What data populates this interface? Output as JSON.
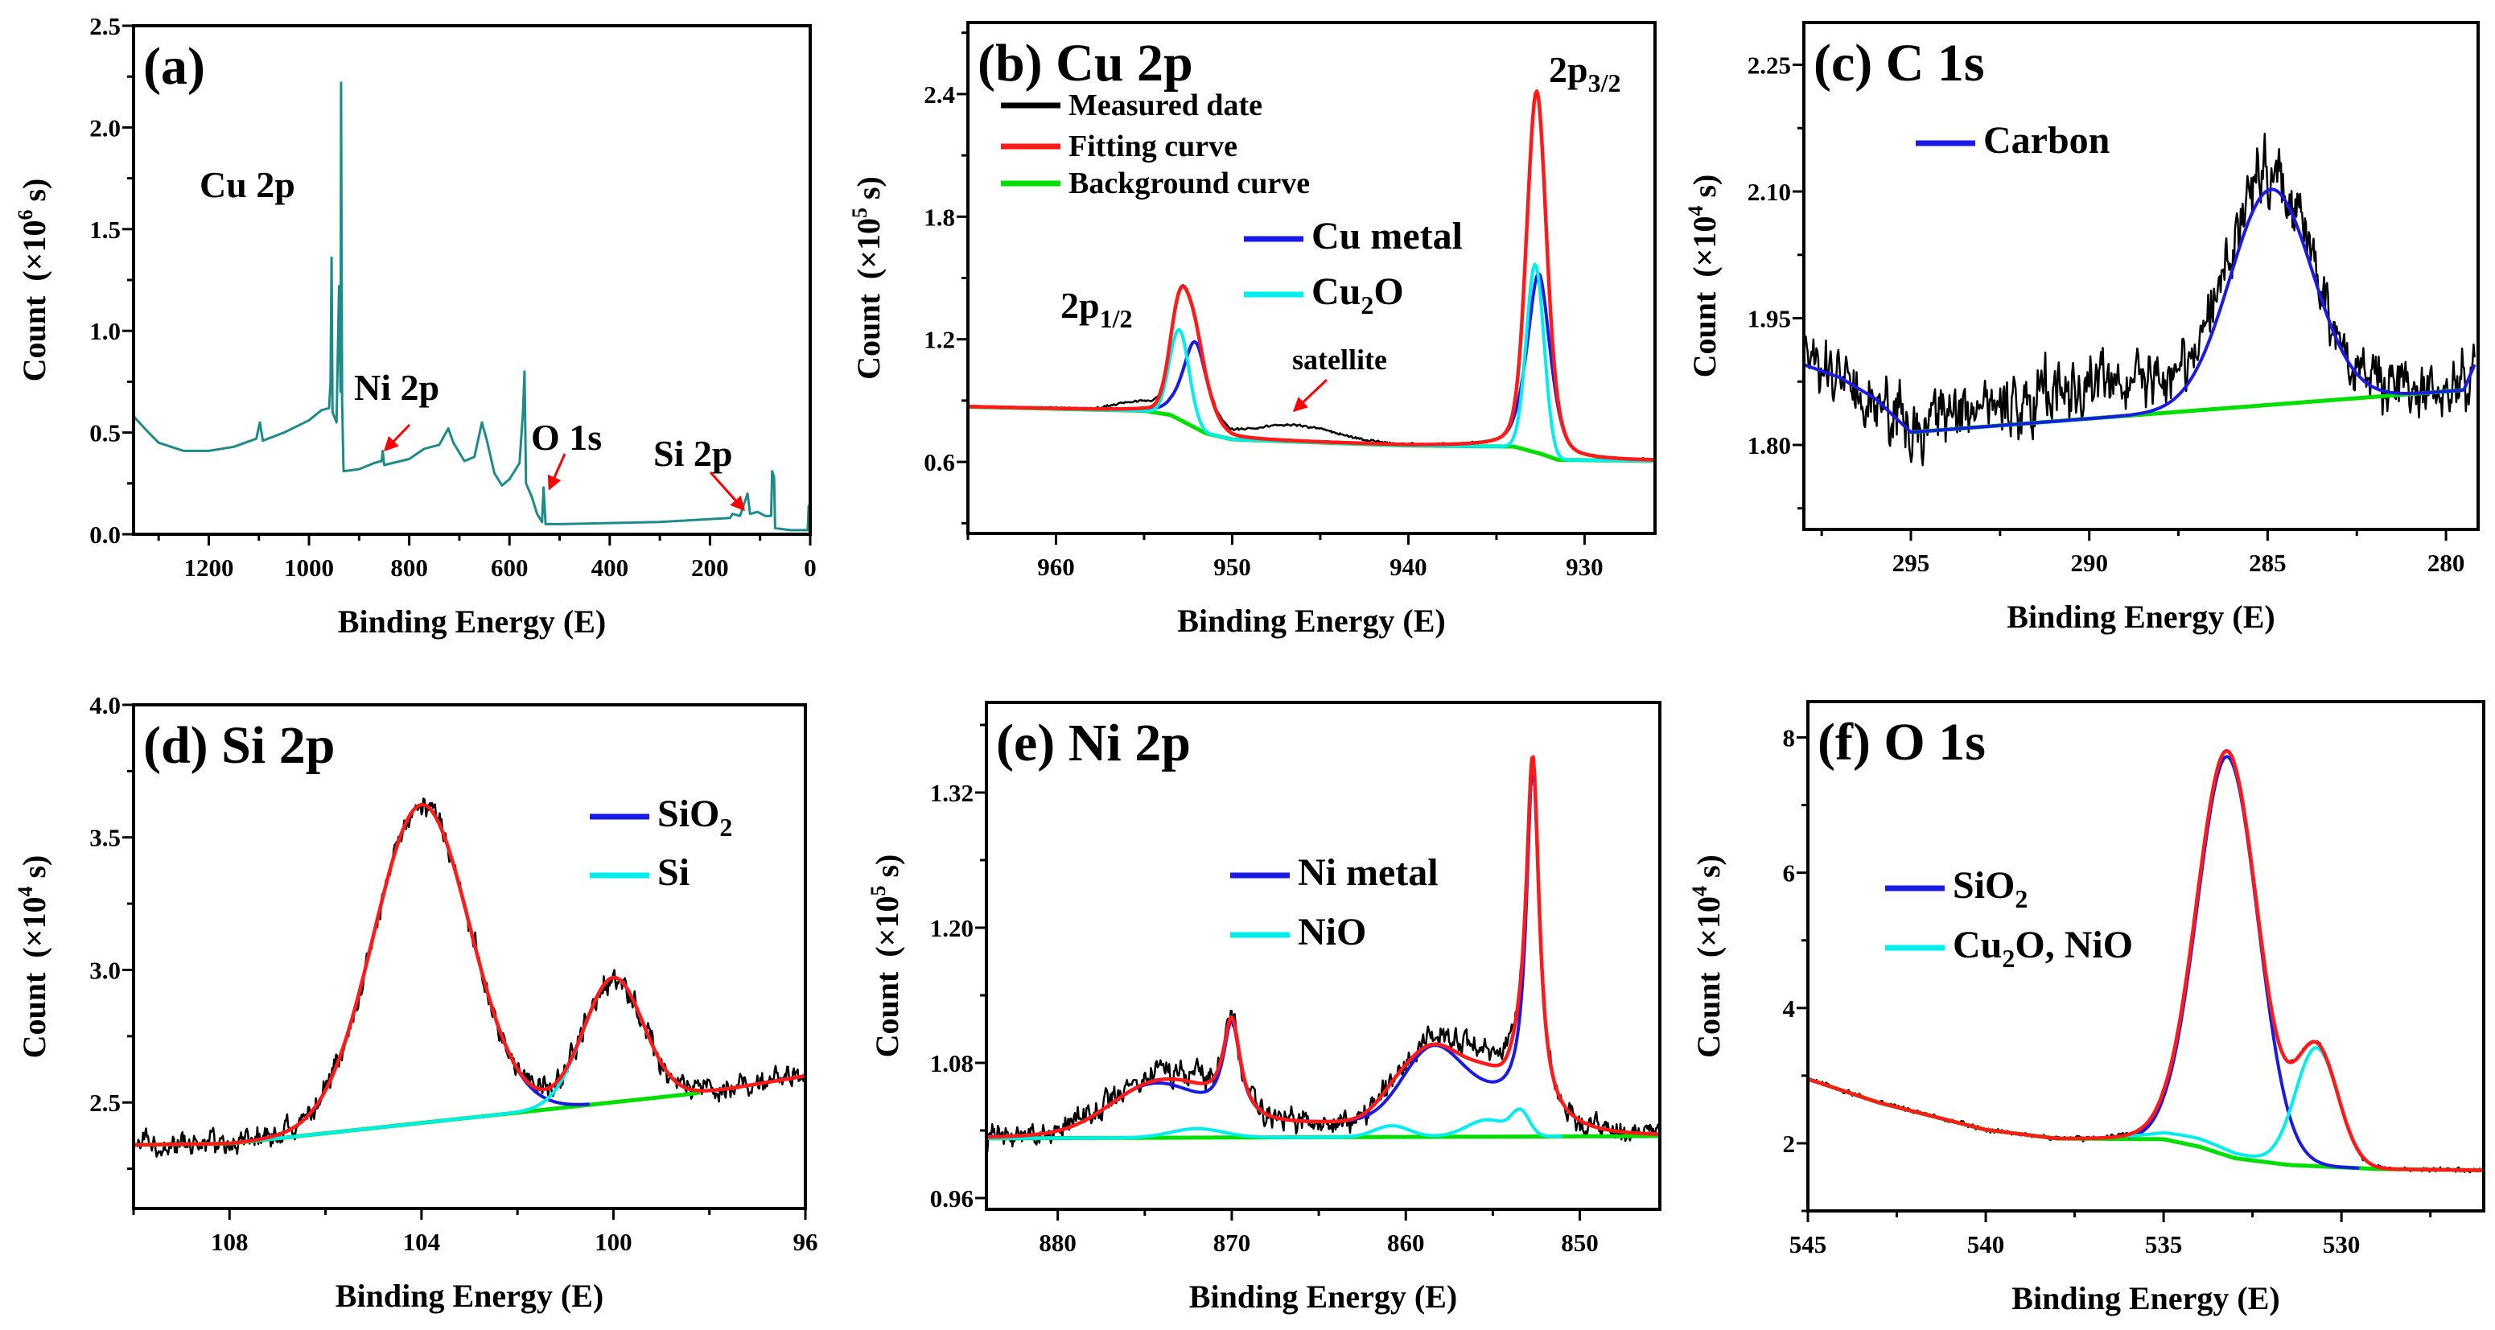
{
  "chart_data": [
    {
      "type": "line",
      "title": "(a)",
      "xlabel": "Binding Energy (E)",
      "ylabel": {
        "main": "Count",
        "pre": "(×10",
        "exp": "6",
        "post": " s)"
      },
      "xlim": [
        1350,
        0
      ],
      "ylim": [
        0,
        2.5
      ],
      "xticks": [
        1200,
        1000,
        800,
        600,
        400,
        200,
        0
      ],
      "xtick_labels": [
        "1200",
        "1000",
        "800",
        "600",
        "400",
        "200",
        "0"
      ],
      "yticks": [
        0,
        0.5,
        1.0,
        1.5,
        2.0,
        2.5
      ],
      "ytick_labels": [
        "0.0",
        "0.5",
        "1.0",
        "1.5",
        "2.0",
        "2.5"
      ],
      "survey": {
        "color": "#1b8c8a",
        "points": [
          [
            1350,
            0.58
          ],
          [
            1320,
            0.5
          ],
          [
            1300,
            0.45
          ],
          [
            1250,
            0.41
          ],
          [
            1200,
            0.41
          ],
          [
            1150,
            0.43
          ],
          [
            1105,
            0.47
          ],
          [
            1098,
            0.55
          ],
          [
            1092,
            0.46
          ],
          [
            1050,
            0.5
          ],
          [
            1000,
            0.56
          ],
          [
            975,
            0.61
          ],
          [
            960,
            0.62
          ],
          [
            957,
            0.75
          ],
          [
            955,
            1.36
          ],
          [
            953,
            0.6
          ],
          [
            945,
            0.55
          ],
          [
            940,
            1.22
          ],
          [
            937,
            0.7
          ],
          [
            936,
            2.22
          ],
          [
            934,
            0.65
          ],
          [
            931,
            0.31
          ],
          [
            900,
            0.32
          ],
          [
            870,
            0.35
          ],
          [
            855,
            0.36
          ],
          [
            853,
            0.41
          ],
          [
            850,
            0.34
          ],
          [
            800,
            0.37
          ],
          [
            770,
            0.42
          ],
          [
            740,
            0.44
          ],
          [
            722,
            0.52
          ],
          [
            712,
            0.45
          ],
          [
            690,
            0.36
          ],
          [
            670,
            0.38
          ],
          [
            655,
            0.55
          ],
          [
            645,
            0.46
          ],
          [
            630,
            0.3
          ],
          [
            615,
            0.24
          ],
          [
            600,
            0.27
          ],
          [
            580,
            0.35
          ],
          [
            573,
            0.6
          ],
          [
            570,
            0.8
          ],
          [
            567,
            0.25
          ],
          [
            555,
            0.18
          ],
          [
            545,
            0.1
          ],
          [
            535,
            0.06
          ],
          [
            532,
            0.23
          ],
          [
            528,
            0.05
          ],
          [
            500,
            0.05
          ],
          [
            300,
            0.06
          ],
          [
            160,
            0.08
          ],
          [
            155,
            0.1
          ],
          [
            140,
            0.09
          ],
          [
            125,
            0.2
          ],
          [
            120,
            0.1
          ],
          [
            105,
            0.11
          ],
          [
            90,
            0.09
          ],
          [
            78,
            0.09
          ],
          [
            76,
            0.31
          ],
          [
            72,
            0.28
          ],
          [
            70,
            0.03
          ],
          [
            40,
            0.02
          ],
          [
            5,
            0.02
          ],
          [
            3,
            0.14
          ],
          [
            1,
            0.02
          ]
        ]
      },
      "annotations": [
        {
          "text": "Cu 2p"
        },
        {
          "text": "Ni 2p"
        },
        {
          "text": "O 1s"
        },
        {
          "text": "Si 2p"
        }
      ],
      "legend": []
    },
    {
      "type": "line",
      "title": "(b) Cu 2p",
      "xlabel": "Binding Energy (E)",
      "ylabel": {
        "main": "Count",
        "pre": "(×10",
        "exp": "5",
        "post": " s)"
      },
      "xlim": [
        965,
        926
      ],
      "ylim": [
        0.25,
        2.75
      ],
      "xticks": [
        960,
        950,
        940,
        930
      ],
      "xtick_labels": [
        "960",
        "950",
        "940",
        "930"
      ],
      "yticks": [
        0.6,
        1.2,
        1.8,
        2.4
      ],
      "ytick_labels": [
        "0.6",
        "1.2",
        "1.8",
        "2.4"
      ],
      "background": {
        "color": "#00e000",
        "points": [
          [
            965,
            0.87
          ],
          [
            955,
            0.85
          ],
          [
            953.5,
            0.83
          ],
          [
            951.5,
            0.74
          ],
          [
            950,
            0.71
          ],
          [
            940,
            0.68
          ],
          [
            934,
            0.675
          ],
          [
            932.5,
            0.64
          ],
          [
            931.5,
            0.61
          ],
          [
            926,
            0.605
          ]
        ],
        "range": [
          965,
          926
        ]
      },
      "components": [
        {
          "color": "#1a1ae6",
          "range": [
            965,
            926
          ],
          "peaks": [
            {
              "c": 952.1,
              "h": 0.42,
              "w": 0.75,
              "s": "V"
            },
            {
              "c": 932.6,
              "h": 0.88,
              "w": 0.7,
              "s": "V"
            }
          ]
        },
        {
          "color": "#00eeee",
          "range": [
            965,
            926
          ],
          "peaks": [
            {
              "c": 953.0,
              "h": 0.44,
              "w": 0.55,
              "s": "G"
            },
            {
              "c": 932.8,
              "h": 0.92,
              "w": 0.5,
              "s": "G"
            }
          ]
        }
      ],
      "fit": {
        "color": "#ff1a1a",
        "range": [
          965,
          926
        ]
      },
      "measured": {
        "color": "#000000",
        "noise": 0.009,
        "seed": 7,
        "range": [
          965,
          926
        ],
        "extra": [
          {
            "c": 946.5,
            "h": 0.075,
            "w": 2.4,
            "s": "G"
          },
          {
            "c": 955.5,
            "h": 0.035,
            "w": 1.2,
            "s": "G"
          }
        ]
      },
      "legend": [
        {
          "text": "Measured date",
          "color": "#000000"
        },
        {
          "text": "Fitting curve",
          "color": "#ff1a1a"
        },
        {
          "text": "Background curve",
          "color": "#00e000"
        },
        {
          "text": "Cu metal",
          "color": "#1a1ae6"
        },
        {
          "text": "Cu",
          "sub": "2",
          "after": "O",
          "color": "#00eeee"
        }
      ],
      "annotations": [
        {
          "text": "2p",
          "sub": "1/2"
        },
        {
          "text": "2p",
          "sub": "3/2"
        },
        {
          "text": "satellite"
        }
      ]
    },
    {
      "type": "line",
      "title": "(c) C 1s",
      "xlabel": "Binding Energy (E)",
      "ylabel": {
        "main": "Count",
        "pre": "(×10",
        "exp": "4",
        "post": " s)"
      },
      "xlim": [
        298,
        279.1
      ],
      "ylim": [
        1.7,
        2.3
      ],
      "xticks": [
        295,
        290,
        285,
        280
      ],
      "xtick_labels": [
        "295",
        "290",
        "285",
        "280"
      ],
      "yticks": [
        1.8,
        1.95,
        2.1,
        2.25
      ],
      "ytick_labels": [
        "1.80",
        "1.95",
        "2.10",
        "2.25"
      ],
      "background": {
        "color": "#00e000",
        "points": [
          [
            298,
            1.895
          ],
          [
            297,
            1.88
          ],
          [
            296,
            1.855
          ],
          [
            295,
            1.815
          ],
          [
            279.5,
            1.865
          ],
          [
            279.2,
            1.895
          ]
        ],
        "range": [
          295,
          279.5
        ]
      },
      "components": [
        {
          "color": "#1a1ae6",
          "range": [
            298,
            279.2
          ],
          "peaks": [
            {
              "c": 284.9,
              "h": 0.255,
              "w": 1.15,
              "s": "G"
            }
          ]
        }
      ],
      "measured": {
        "color": "#000000",
        "noise": 0.06,
        "seed": 11,
        "range": [
          298,
          279.2
        ],
        "extra": [
          {
            "c": 289,
            "h": 0.04,
            "w": 4,
            "s": "G"
          }
        ]
      },
      "legend": [
        {
          "text": "Carbon",
          "color": "#1a1ae6"
        }
      ],
      "annotations": []
    },
    {
      "type": "line",
      "title": "(d) Si 2p",
      "xlabel": "Binding Energy (E)",
      "ylabel": {
        "main": "Count",
        "pre": "(×10",
        "exp": "4",
        "post": " s)"
      },
      "xlim": [
        110,
        96
      ],
      "ylim": [
        2.1,
        4.0
      ],
      "xticks": [
        108,
        104,
        100,
        96
      ],
      "xtick_labels": [
        "108",
        "104",
        "100",
        "96"
      ],
      "yticks": [
        2.5,
        3.0,
        3.5,
        4.0
      ],
      "ytick_labels": [
        "2.5",
        "3.0",
        "3.5",
        "4.0"
      ],
      "background": {
        "color": "#00e000",
        "points": [
          [
            110,
            2.34
          ],
          [
            108,
            2.345
          ],
          [
            98.5,
            2.53
          ],
          [
            97.5,
            2.555
          ],
          [
            96,
            2.6
          ]
        ],
        "range": [
          110,
          98.2
        ]
      },
      "components": [
        {
          "color": "#1a1ae6",
          "range": [
            108,
            100.5
          ],
          "peaks": [
            {
              "c": 104.0,
              "h": 1.2,
              "w": 1.0,
              "s": "G"
            }
          ]
        },
        {
          "color": "#00eeee",
          "range": [
            108,
            98.5
          ],
          "peaks": [
            {
              "c": 100.0,
              "h": 0.47,
              "w": 0.62,
              "s": "G"
            }
          ]
        }
      ],
      "fit": {
        "color": "#ff1a1a",
        "range": [
          110,
          96
        ]
      },
      "measured": {
        "color": "#000000",
        "noise": 0.07,
        "seed": 23,
        "range": [
          110,
          96
        ],
        "extra": []
      },
      "legend": [
        {
          "text": "SiO",
          "sub": "2",
          "color": "#1a1ae6"
        },
        {
          "text": "Si",
          "color": "#00eeee"
        }
      ],
      "annotations": []
    },
    {
      "type": "line",
      "title": "(e) Ni 2p",
      "xlabel": "Binding Energy (E)",
      "ylabel": {
        "main": "Count",
        "pre": "(×10",
        "exp": "5",
        "post": " s)"
      },
      "xlim": [
        884.1,
        845.4
      ],
      "ylim": [
        0.95,
        1.4
      ],
      "xticks": [
        880,
        870,
        860,
        850
      ],
      "xtick_labels": [
        "880",
        "870",
        "860",
        "850"
      ],
      "yticks": [
        0.96,
        1.08,
        1.2,
        1.32
      ],
      "ytick_labels": [
        "0.96",
        "1.08",
        "1.20",
        "1.32"
      ],
      "background": {
        "color": "#00e000",
        "points": [
          [
            884.1,
            1.013
          ],
          [
            845.4,
            1.015
          ]
        ],
        "range": [
          884.1,
          845.4
        ]
      },
      "components": [
        {
          "color": "#1a1ae6",
          "range": [
            884.1,
            851
          ],
          "peaks": [
            {
              "c": 852.7,
              "h": 0.31,
              "w": 0.45,
              "s": "L"
            },
            {
              "c": 870.0,
              "h": 0.085,
              "w": 0.6,
              "s": "L"
            },
            {
              "c": 858.6,
              "h": 0.05,
              "w": 1.6,
              "s": "G"
            },
            {
              "c": 874.5,
              "h": 0.04,
              "w": 2.5,
              "s": "G"
            },
            {
              "c": 856,
              "h": 0.03,
              "w": 3.0,
              "s": "G"
            },
            {
              "c": 866,
              "h": 0.012,
              "w": 8,
              "s": "G"
            }
          ]
        },
        {
          "color": "#00eeee",
          "range": [
            884.1,
            851
          ],
          "peaks": [
            {
              "c": 853.4,
              "h": 0.02,
              "w": 0.5,
              "s": "G"
            },
            {
              "c": 855.3,
              "h": 0.015,
              "w": 1.2,
              "s": "G"
            },
            {
              "c": 860.8,
              "h": 0.01,
              "w": 1.0,
              "s": "G"
            },
            {
              "c": 872,
              "h": 0.008,
              "w": 1.5,
              "s": "G"
            }
          ]
        }
      ],
      "fit": {
        "color": "#ff1a1a",
        "range": [
          884.1,
          845.4
        ]
      },
      "measured": {
        "color": "#000000",
        "noise": 0.017,
        "seed": 5,
        "range": [
          884.1,
          845.4
        ],
        "extra": [
          {
            "c": 856,
            "h": 0.012,
            "w": 1.8,
            "s": "G"
          },
          {
            "c": 874,
            "h": 0.008,
            "w": 2,
            "s": "G"
          }
        ]
      },
      "legend": [
        {
          "text": "Ni metal",
          "color": "#1a1ae6"
        },
        {
          "text": "NiO",
          "color": "#00eeee"
        }
      ],
      "annotations": []
    },
    {
      "type": "line",
      "title": "(f) O 1s",
      "xlabel": "Binding Energy (E)",
      "ylabel": {
        "main": "Count",
        "pre": "(×10",
        "exp": "4",
        "post": " s)"
      },
      "xlim": [
        545,
        526
      ],
      "ylim": [
        1.0,
        8.53
      ],
      "xticks": [
        545,
        540,
        535,
        530
      ],
      "xtick_labels": [
        "545",
        "540",
        "535",
        "530"
      ],
      "yticks": [
        2,
        4,
        6,
        8
      ],
      "ytick_labels": [
        "2",
        "4",
        "6",
        "8"
      ],
      "background": {
        "color": "#00e000",
        "points": [
          [
            545,
            2.95
          ],
          [
            543,
            2.6
          ],
          [
            540,
            2.2
          ],
          [
            538,
            2.07
          ],
          [
            535,
            2.06
          ],
          [
            534,
            1.95
          ],
          [
            533,
            1.78
          ],
          [
            531.5,
            1.68
          ],
          [
            529,
            1.62
          ],
          [
            526,
            1.6
          ]
        ],
        "range": [
          545,
          526
        ]
      },
      "components": [
        {
          "color": "#1a1ae6",
          "range": [
            536,
            529.5
          ],
          "peaks": [
            {
              "c": 533.2,
              "h": 5.9,
              "w": 0.85,
              "s": "G"
            }
          ]
        },
        {
          "color": "#00eeee",
          "range": [
            536,
            529.5
          ],
          "peaks": [
            {
              "c": 530.7,
              "h": 1.75,
              "w": 0.6,
              "s": "G"
            },
            {
              "c": 534.2,
              "h": 0.12,
              "w": 1.2,
              "s": "G"
            }
          ]
        }
      ],
      "fit": {
        "color": "#ff1a1a",
        "range": [
          545,
          526
        ]
      },
      "measured": {
        "color": "#000000",
        "noise": 0.05,
        "seed": 3,
        "range": [
          545,
          526
        ],
        "extra": []
      },
      "legend": [
        {
          "text": "SiO",
          "sub": "2",
          "color": "#1a1ae6"
        },
        {
          "text": "Cu",
          "sub": "2",
          "after": "O, NiO",
          "color": "#00eeee"
        }
      ],
      "annotations": []
    }
  ]
}
